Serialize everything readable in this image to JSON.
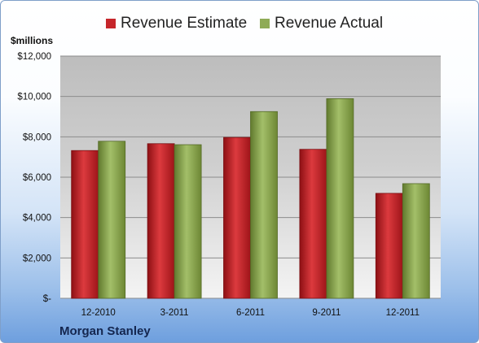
{
  "chart_data": {
    "type": "bar",
    "categories": [
      "12-2010",
      "3-2011",
      "6-2011",
      "9-2011",
      "12-2011"
    ],
    "series": [
      {
        "name": "Revenue Estimate",
        "values": [
          7320,
          7660,
          7970,
          7380,
          5200
        ],
        "color": "#c6262b"
      },
      {
        "name": "Revenue Actual",
        "values": [
          7780,
          7610,
          9250,
          9890,
          5680
        ],
        "color": "#8fab56"
      }
    ],
    "ylabel": "$millions",
    "ylim": [
      0,
      12000
    ],
    "yticks": [
      0,
      2000,
      4000,
      6000,
      8000,
      10000,
      12000
    ],
    "ytick_labels": [
      "$-",
      "$2,000",
      "$4,000",
      "$6,000",
      "$8,000",
      "$10,000",
      "$12,000"
    ],
    "grid": true,
    "legend_position": "top"
  },
  "footer": {
    "company": "Morgan Stanley"
  }
}
